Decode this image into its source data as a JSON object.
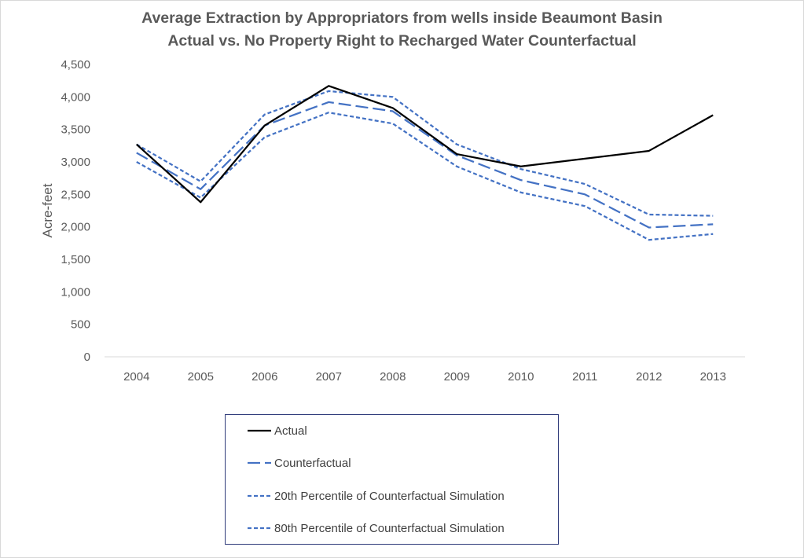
{
  "chart_data": {
    "type": "line",
    "title": "Average Extraction by Appropriators from wells inside Beaumont Basin",
    "subtitle": "Actual vs. No  Property Right to Recharged Water Counterfactual",
    "xlabel": "",
    "ylabel": "Acre-feet",
    "ylim": [
      0,
      4500
    ],
    "yticks": [
      0,
      500,
      1000,
      1500,
      2000,
      2500,
      3000,
      3500,
      4000,
      4500
    ],
    "ytick_labels": [
      "0",
      "500",
      "1,000",
      "1,500",
      "2,000",
      "2,500",
      "3,000",
      "3,500",
      "4,000",
      "4,500"
    ],
    "categories": [
      "2004",
      "2005",
      "2006",
      "2007",
      "2008",
      "2009",
      "2010",
      "2011",
      "2012",
      "2013"
    ],
    "grid": false,
    "legend_position": "bottom",
    "series": [
      {
        "name": "Actual",
        "color": "#000000",
        "style": "solid",
        "values": [
          3270,
          2380,
          3560,
          4170,
          3830,
          3120,
          2930,
          3050,
          3170,
          3720
        ]
      },
      {
        "name": "Counterfactual",
        "color": "#4472c4",
        "style": "longdash",
        "values": [
          3140,
          2580,
          3560,
          3920,
          3780,
          3100,
          2720,
          2500,
          1990,
          2040
        ]
      },
      {
        "name": "20th Percentile of Counterfactual Simulation",
        "color": "#4472c4",
        "style": "dash",
        "values": [
          3000,
          2450,
          3380,
          3760,
          3590,
          2930,
          2530,
          2320,
          1800,
          1890
        ]
      },
      {
        "name": "80th Percentile of Counterfactual Simulation",
        "color": "#4472c4",
        "style": "dash",
        "values": [
          3270,
          2700,
          3730,
          4090,
          4000,
          3270,
          2890,
          2660,
          2190,
          2170
        ]
      }
    ]
  }
}
